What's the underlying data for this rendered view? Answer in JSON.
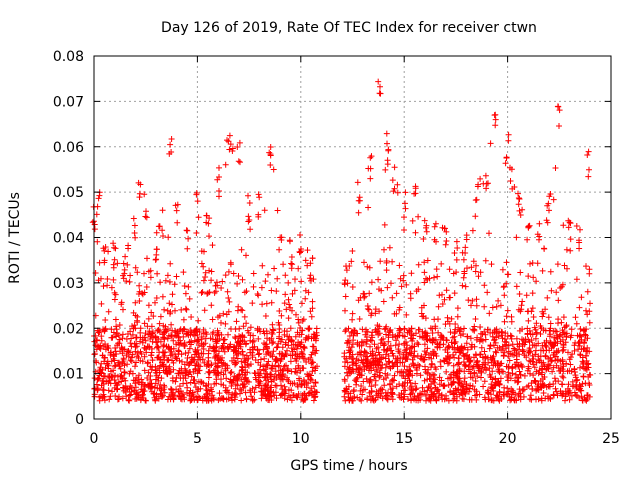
{
  "chart_data": {
    "type": "scatter",
    "title": "Day 126 of 2019, Rate Of TEC Index for receiver ctwn",
    "xlabel": "GPS time / hours",
    "ylabel": "ROTI / TECUs",
    "xlim": [
      0,
      25
    ],
    "ylim": [
      0,
      0.08
    ],
    "xticks": [
      0,
      5,
      10,
      15,
      20,
      25
    ],
    "xtick_labels": [
      "0",
      "5",
      "10",
      "15",
      "20",
      "25"
    ],
    "yticks": [
      0,
      0.01,
      0.02,
      0.03,
      0.04,
      0.05,
      0.06,
      0.07,
      0.08
    ],
    "ytick_labels": [
      "0",
      "0.01",
      "0.02",
      "0.03",
      "0.04",
      "0.05",
      "0.06",
      "0.07",
      "0.08"
    ],
    "grid": true,
    "marker": "+",
    "series": [
      {
        "name": "ROTI",
        "color": "#ff0000",
        "data_gap_hours": [
          10.8,
          12.1
        ],
        "baseline_range": [
          0.004,
          0.02
        ],
        "envelope": [
          {
            "x": 0.0,
            "y": 0.047
          },
          {
            "x": 0.2,
            "y": 0.051
          },
          {
            "x": 0.5,
            "y": 0.038
          },
          {
            "x": 1.0,
            "y": 0.04
          },
          {
            "x": 1.5,
            "y": 0.036
          },
          {
            "x": 2.0,
            "y": 0.045
          },
          {
            "x": 2.2,
            "y": 0.054
          },
          {
            "x": 2.5,
            "y": 0.05
          },
          {
            "x": 3.0,
            "y": 0.04
          },
          {
            "x": 3.7,
            "y": 0.063
          },
          {
            "x": 4.0,
            "y": 0.048
          },
          {
            "x": 4.5,
            "y": 0.043
          },
          {
            "x": 5.0,
            "y": 0.05
          },
          {
            "x": 5.5,
            "y": 0.045
          },
          {
            "x": 6.0,
            "y": 0.055
          },
          {
            "x": 6.5,
            "y": 0.063
          },
          {
            "x": 7.0,
            "y": 0.061
          },
          {
            "x": 7.5,
            "y": 0.048
          },
          {
            "x": 8.0,
            "y": 0.05
          },
          {
            "x": 8.5,
            "y": 0.064
          },
          {
            "x": 9.0,
            "y": 0.042
          },
          {
            "x": 9.5,
            "y": 0.04
          },
          {
            "x": 10.0,
            "y": 0.041
          },
          {
            "x": 10.5,
            "y": 0.036
          },
          {
            "x": 12.2,
            "y": 0.035
          },
          {
            "x": 12.8,
            "y": 0.053
          },
          {
            "x": 13.3,
            "y": 0.058
          },
          {
            "x": 13.8,
            "y": 0.076
          },
          {
            "x": 14.2,
            "y": 0.062
          },
          {
            "x": 14.5,
            "y": 0.056
          },
          {
            "x": 15.0,
            "y": 0.05
          },
          {
            "x": 15.5,
            "y": 0.055
          },
          {
            "x": 16.0,
            "y": 0.045
          },
          {
            "x": 16.5,
            "y": 0.044
          },
          {
            "x": 17.0,
            "y": 0.043
          },
          {
            "x": 17.5,
            "y": 0.04
          },
          {
            "x": 18.0,
            "y": 0.042
          },
          {
            "x": 18.5,
            "y": 0.052
          },
          {
            "x": 19.0,
            "y": 0.055
          },
          {
            "x": 19.4,
            "y": 0.068
          },
          {
            "x": 20.0,
            "y": 0.063
          },
          {
            "x": 20.5,
            "y": 0.05
          },
          {
            "x": 21.0,
            "y": 0.044
          },
          {
            "x": 21.5,
            "y": 0.045
          },
          {
            "x": 22.0,
            "y": 0.05
          },
          {
            "x": 22.5,
            "y": 0.069
          },
          {
            "x": 23.0,
            "y": 0.046
          },
          {
            "x": 23.5,
            "y": 0.042
          },
          {
            "x": 23.9,
            "y": 0.059
          }
        ]
      }
    ]
  }
}
